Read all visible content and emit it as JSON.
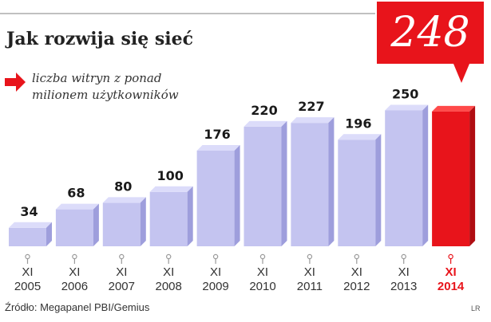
{
  "chart_data": {
    "type": "bar",
    "title": "Jak rozwija się sieć",
    "legend": "liczba witryn z ponad milionem użytkowników",
    "legend_lines": [
      "liczba witryn z ponad",
      "milionem użytkowników"
    ],
    "categories": [
      {
        "month": "XI",
        "year": "2005"
      },
      {
        "month": "XI",
        "year": "2006"
      },
      {
        "month": "XI",
        "year": "2007"
      },
      {
        "month": "XI",
        "year": "2008"
      },
      {
        "month": "XI",
        "year": "2009"
      },
      {
        "month": "XI",
        "year": "2010"
      },
      {
        "month": "XI",
        "year": "2011"
      },
      {
        "month": "XI",
        "year": "2012"
      },
      {
        "month": "XI",
        "year": "2013"
      },
      {
        "month": "XI",
        "year": "2014"
      }
    ],
    "values": [
      34,
      68,
      80,
      100,
      176,
      220,
      227,
      196,
      250,
      248
    ],
    "value_labels": [
      "34",
      "68",
      "80",
      "100",
      "176",
      "220",
      "227",
      "196",
      "250",
      ""
    ],
    "highlight": {
      "index": 9,
      "label": "248"
    },
    "ylim": [
      0,
      280
    ],
    "colors": {
      "bar_front": "#c4c4f0",
      "bar_top": "#dcdcfa",
      "bar_side": "#9e9edc",
      "highlight_front": "#e8141b",
      "highlight_top": "#ff4a4a",
      "highlight_side": "#b00d12",
      "accent": "#e8141b"
    }
  },
  "source": "Źródło: Megapanel PBI/Gemius",
  "credit": "LR"
}
